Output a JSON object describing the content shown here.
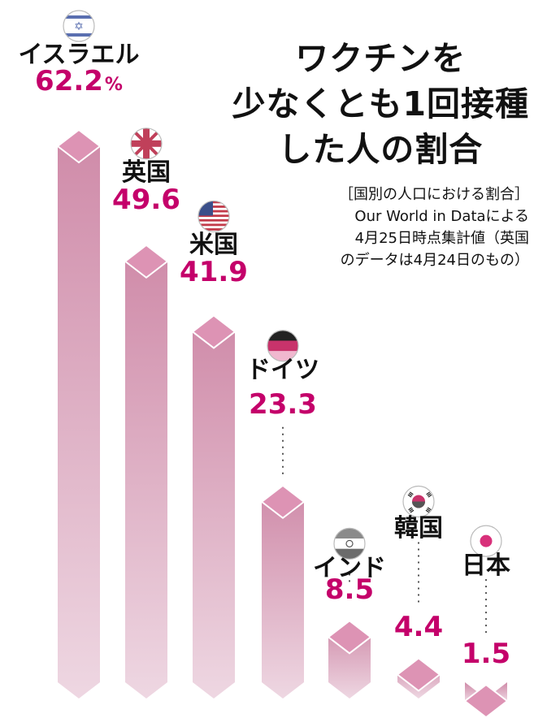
{
  "title_lines": [
    "ワクチンを",
    "少なくとも1回接種",
    "した人の割合"
  ],
  "note_lines": [
    "［国別の人口における割合］",
    "Our World in Dataによる",
    "4月25日時点集計値（英国",
    "のデータは4月24日のもの）"
  ],
  "unit": "%",
  "colors": {
    "value": "#c4006a",
    "bar_top": "#cf8aa8",
    "bar_bottom": "#eed7e2",
    "cap": "#dd93b4"
  },
  "chart_data": {
    "type": "bar",
    "title": "ワクチンを少なくとも1回接種した人の割合",
    "categories": [
      "イスラエル",
      "英国",
      "米国",
      "ドイツ",
      "インド",
      "韓国",
      "日本"
    ],
    "values": [
      62.2,
      49.6,
      41.9,
      23.3,
      8.5,
      4.4,
      1.5
    ],
    "value_labels": [
      "62.2",
      "49.6",
      "41.9",
      "23.3",
      "8.5",
      "4.4",
      "1.5"
    ],
    "flag_icons": [
      "israel-flag-icon",
      "uk-flag-icon",
      "us-flag-icon",
      "germany-flag-icon",
      "india-flag-icon",
      "korea-flag-icon",
      "japan-flag-icon"
    ],
    "ylim": [
      0,
      62.2
    ],
    "grid": false,
    "legend": "none"
  }
}
